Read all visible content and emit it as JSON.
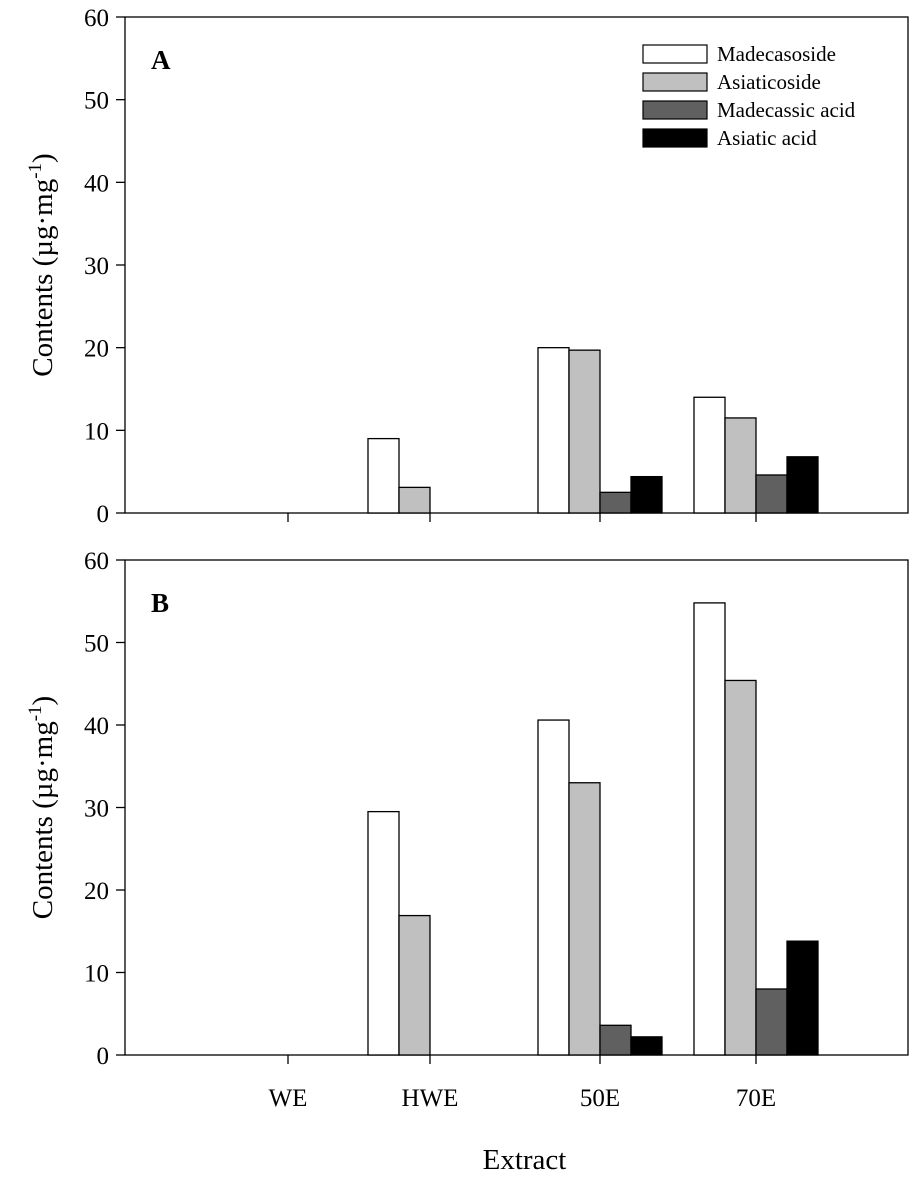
{
  "chart_data": [
    {
      "type": "bar",
      "panel_label": "A",
      "categories": [
        "WE",
        "HWE",
        "50E",
        "70E"
      ],
      "series": [
        {
          "name": "Madecasoside",
          "color": "#ffffff",
          "values": [
            0,
            9.0,
            20.0,
            14.0
          ]
        },
        {
          "name": "Asiaticoside",
          "color": "#c0c0c0",
          "values": [
            0,
            3.1,
            19.7,
            11.5
          ]
        },
        {
          "name": "Madecassic acid",
          "color": "#606060",
          "values": [
            0,
            0,
            2.5,
            4.6
          ]
        },
        {
          "name": "Asiatic acid",
          "color": "#000000",
          "values": [
            0,
            0,
            4.4,
            6.8
          ]
        }
      ],
      "ylabel": "Contents (µg·mg",
      "ylabel_sup": "-1",
      "ylabel_close": ")",
      "ylim": [
        0,
        60
      ],
      "yticks": [
        "0",
        "10",
        "20",
        "30",
        "40",
        "50",
        "60"
      ],
      "legend": "top-right",
      "grid": false
    },
    {
      "type": "bar",
      "panel_label": "B",
      "categories": [
        "WE",
        "HWE",
        "50E",
        "70E"
      ],
      "series": [
        {
          "name": "Madecasoside",
          "color": "#ffffff",
          "values": [
            0,
            29.5,
            40.6,
            54.8
          ]
        },
        {
          "name": "Asiaticoside",
          "color": "#c0c0c0",
          "values": [
            0,
            16.9,
            33.0,
            45.4
          ]
        },
        {
          "name": "Madecassic acid",
          "color": "#606060",
          "values": [
            0,
            0,
            3.6,
            8.0
          ]
        },
        {
          "name": "Asiatic acid",
          "color": "#000000",
          "values": [
            0,
            0,
            2.2,
            13.8
          ]
        }
      ],
      "ylabel": "Contents (µg·mg",
      "ylabel_sup": "-1",
      "ylabel_close": ")",
      "ylim": [
        0,
        60
      ],
      "yticks": [
        "0",
        "10",
        "20",
        "30",
        "40",
        "50",
        "60"
      ],
      "xlabel": "Extract",
      "grid": false
    }
  ]
}
